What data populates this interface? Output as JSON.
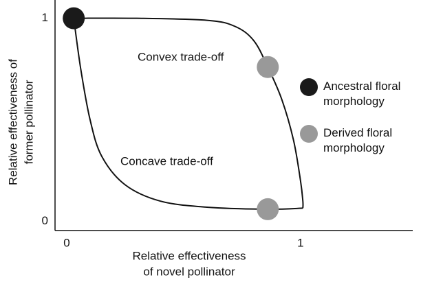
{
  "chart_data": {
    "type": "scatter",
    "x_label": [
      "Relative effectiveness",
      "of novel pollinator"
    ],
    "y_label": [
      "Relative effectiveness of",
      "former pollinator"
    ],
    "xlim": [
      -0.05,
      1.48
    ],
    "ylim": [
      -0.045,
      1.09
    ],
    "xticks": [
      0,
      1
    ],
    "yticks": [
      0,
      1
    ],
    "curves": [
      {
        "label": "Convex trade-off",
        "x": [
          0.03,
          0.3,
          0.6,
          0.72,
          0.8,
          0.86,
          0.92,
          0.97,
          1.0,
          1.01,
          1.01
        ],
        "values": [
          1.0,
          1.0,
          0.99,
          0.96,
          0.89,
          0.76,
          0.6,
          0.4,
          0.2,
          0.1,
          0.065
        ]
      },
      {
        "label": "Concave trade-off",
        "x": [
          0.03,
          0.06,
          0.1,
          0.15,
          0.25,
          0.4,
          0.6,
          0.86,
          1.01
        ],
        "values": [
          1.0,
          0.75,
          0.5,
          0.32,
          0.18,
          0.1,
          0.07,
          0.06,
          0.065
        ]
      }
    ],
    "series": [
      {
        "name": "Ancestral floral morphology",
        "color": "#1a1a1a",
        "x": [
          0.03
        ],
        "values": [
          1.0
        ]
      },
      {
        "name": "Derived floral morphology",
        "color": "#999999",
        "x": [
          0.86,
          0.86
        ],
        "values": [
          0.76,
          0.06
        ]
      }
    ]
  }
}
